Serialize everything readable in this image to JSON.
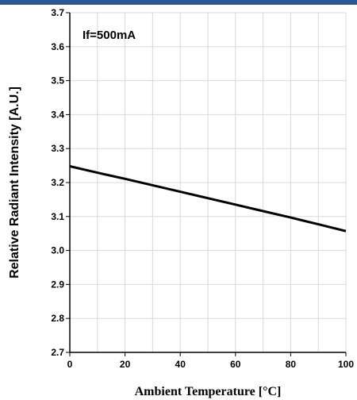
{
  "header": {
    "bar_color": "#2f5597"
  },
  "chart_data": {
    "type": "line",
    "title": "",
    "annotation": "If=500mA",
    "xlabel": "Ambient Temperature [°C]",
    "ylabel": "Relative Radiant Intensity [A.U.]",
    "xlim": [
      0,
      100
    ],
    "ylim": [
      2.7,
      3.7
    ],
    "x_ticks": [
      0,
      20,
      40,
      60,
      80,
      100
    ],
    "x_tick_labels": [
      "0",
      "20",
      "40",
      "60",
      "80",
      "100"
    ],
    "y_ticks": [
      2.7,
      2.8,
      2.9,
      3.0,
      3.1,
      3.2,
      3.3,
      3.4,
      3.5,
      3.6,
      3.7
    ],
    "y_tick_labels": [
      "2.7",
      "2.8",
      "2.9",
      "3.0",
      "3.1",
      "3.2",
      "3.3",
      "3.4",
      "3.5",
      "3.6",
      "3.7"
    ],
    "grid": true,
    "grid_color": "#d9d9d9",
    "line_color": "#000000",
    "series": [
      {
        "x": [
          0,
          10,
          20,
          30,
          40,
          50,
          60,
          70,
          80,
          90,
          100
        ],
        "y": [
          3.248,
          3.229,
          3.211,
          3.192,
          3.173,
          3.154,
          3.135,
          3.116,
          3.097,
          3.077,
          3.057
        ]
      }
    ]
  }
}
